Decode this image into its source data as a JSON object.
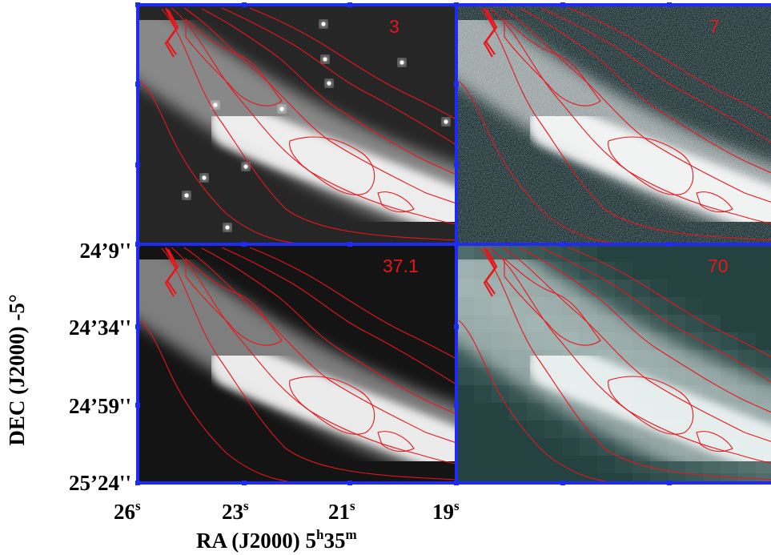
{
  "panels": [
    {
      "label": "3",
      "style": "stars"
    },
    {
      "label": "7",
      "style": "noisy"
    },
    {
      "label": "37.1",
      "style": "smooth"
    },
    {
      "label": "70",
      "style": "pixelated"
    }
  ],
  "dec_ticks": [
    "24’9''",
    "24’34''",
    "24’59''",
    "25’24''"
  ],
  "ra_ticks": [
    {
      "num": "26",
      "sup": "s"
    },
    {
      "num": "23",
      "sup": "s"
    },
    {
      "num": "21",
      "sup": "s"
    },
    {
      "num": "19",
      "sup": "s"
    }
  ],
  "ylabel": "DEC (J2000) -5°",
  "xlabel": {
    "text": "RA (J2000) 5",
    "h": "h",
    "mid": "35",
    "m": "m"
  },
  "colors": {
    "frame": "#1d2bf5",
    "contour": "#e8161a",
    "label": "#e8161a"
  }
}
